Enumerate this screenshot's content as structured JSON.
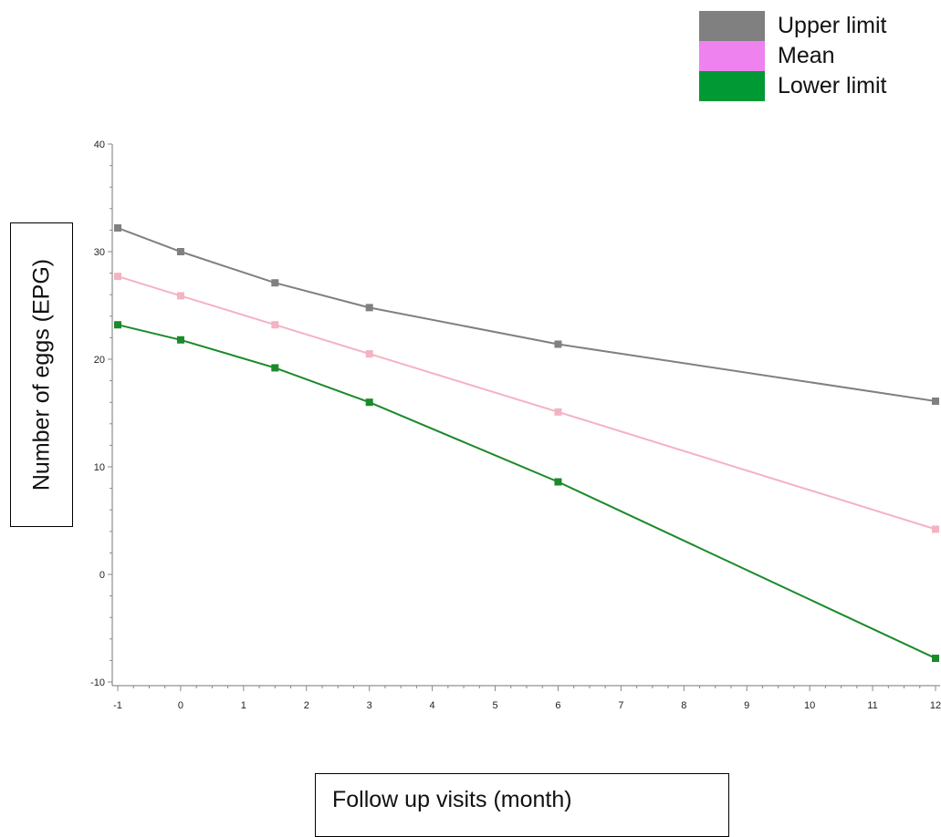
{
  "chart_data": {
    "type": "line",
    "xlabel": "Follow up visits (month)",
    "ylabel": "Number of eggs (EPG)",
    "xlim": [
      -1,
      12
    ],
    "ylim": [
      -10,
      40
    ],
    "x_ticks": [
      -1,
      0,
      1,
      2,
      3,
      4,
      5,
      6,
      7,
      8,
      9,
      10,
      11,
      12
    ],
    "y_ticks": [
      -10,
      0,
      10,
      20,
      30,
      40
    ],
    "x_tick_labels": [
      "-1",
      "0",
      "1",
      "2",
      "3",
      "4",
      "5",
      "6",
      "7",
      "8",
      "9",
      "10",
      "11",
      "12"
    ],
    "y_tick_labels": [
      "-10",
      "0",
      "10",
      "20",
      "30",
      "40"
    ],
    "legend_position": "top-right",
    "grid": false,
    "series": [
      {
        "name": "Upper limit",
        "color": "#808080",
        "x": [
          -1,
          0,
          1.5,
          3,
          6,
          12
        ],
        "y": [
          32.2,
          30.0,
          27.1,
          24.8,
          21.4,
          16.1
        ]
      },
      {
        "name": "Mean",
        "color": "#f4b3c2",
        "legend_color": "#ee82ee",
        "x": [
          -1,
          0,
          1.5,
          3,
          6,
          12
        ],
        "y": [
          27.7,
          25.9,
          23.2,
          20.5,
          15.1,
          4.2
        ]
      },
      {
        "name": "Lower limit",
        "color": "#1a8a2a",
        "legend_color": "#009933",
        "x": [
          -1,
          0,
          1.5,
          3,
          6,
          12
        ],
        "y": [
          23.2,
          21.8,
          19.2,
          16.0,
          8.6,
          -7.8
        ]
      }
    ]
  }
}
